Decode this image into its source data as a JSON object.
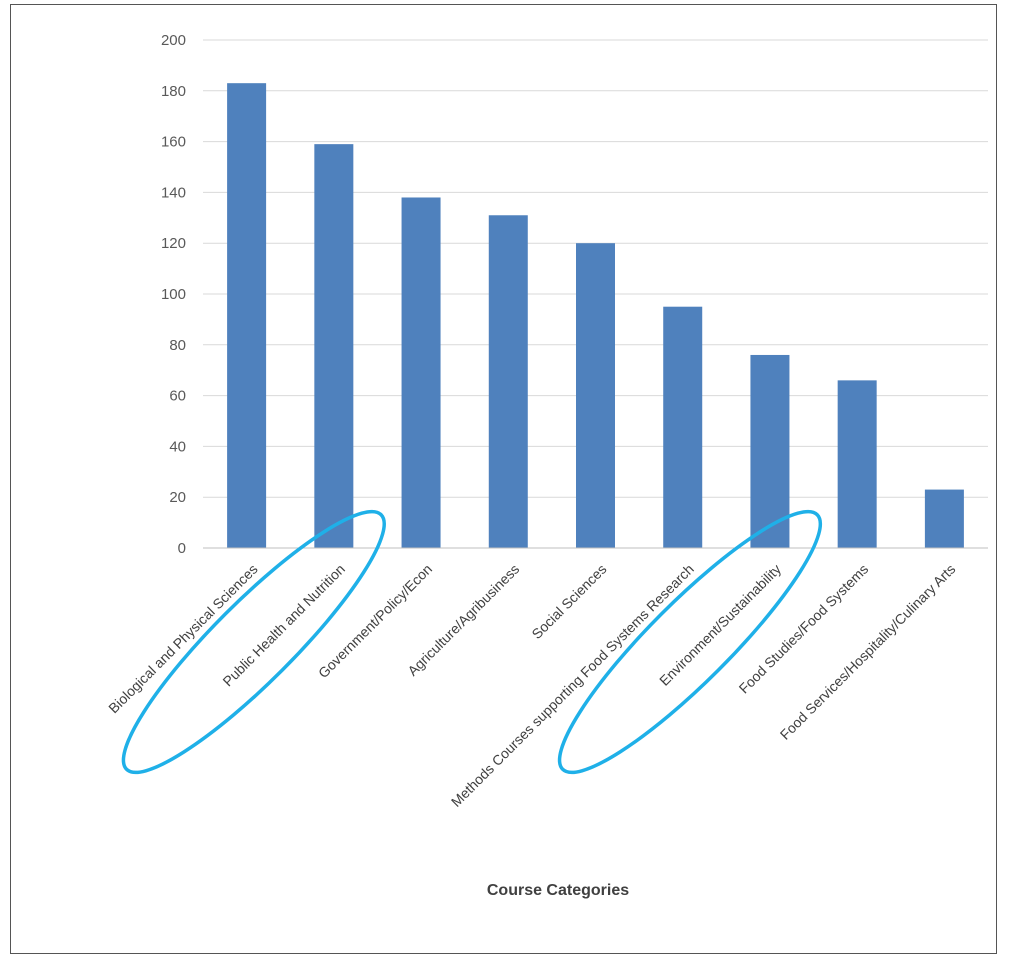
{
  "chart_data": {
    "type": "bar",
    "title": "",
    "xlabel": "Course Categories",
    "ylabel": "",
    "ylim": [
      0,
      200
    ],
    "yticks": [
      0,
      20,
      40,
      60,
      80,
      100,
      120,
      140,
      160,
      180,
      200
    ],
    "grid": true,
    "categories": [
      "Biological and Physical Sciences",
      "Public Health and Nutrition",
      "Government/Policy/Econ",
      "Agriculture/Agribusiness",
      "Social Sciences",
      "Methods Courses supporting Food Systems Research",
      "Environment/Sustainability",
      "Food Studies/Food Systems",
      "Food Services/Hospitality/Culinary Arts"
    ],
    "values": [
      183,
      159,
      138,
      131,
      120,
      95,
      76,
      66,
      23
    ],
    "bar_color": "#4f81bd",
    "gridline_color": "#d9d9d9",
    "highlight_color": "#1fb0e8",
    "highlighted_categories": [
      "Public Health and Nutrition",
      "Environment/Sustainability"
    ]
  }
}
